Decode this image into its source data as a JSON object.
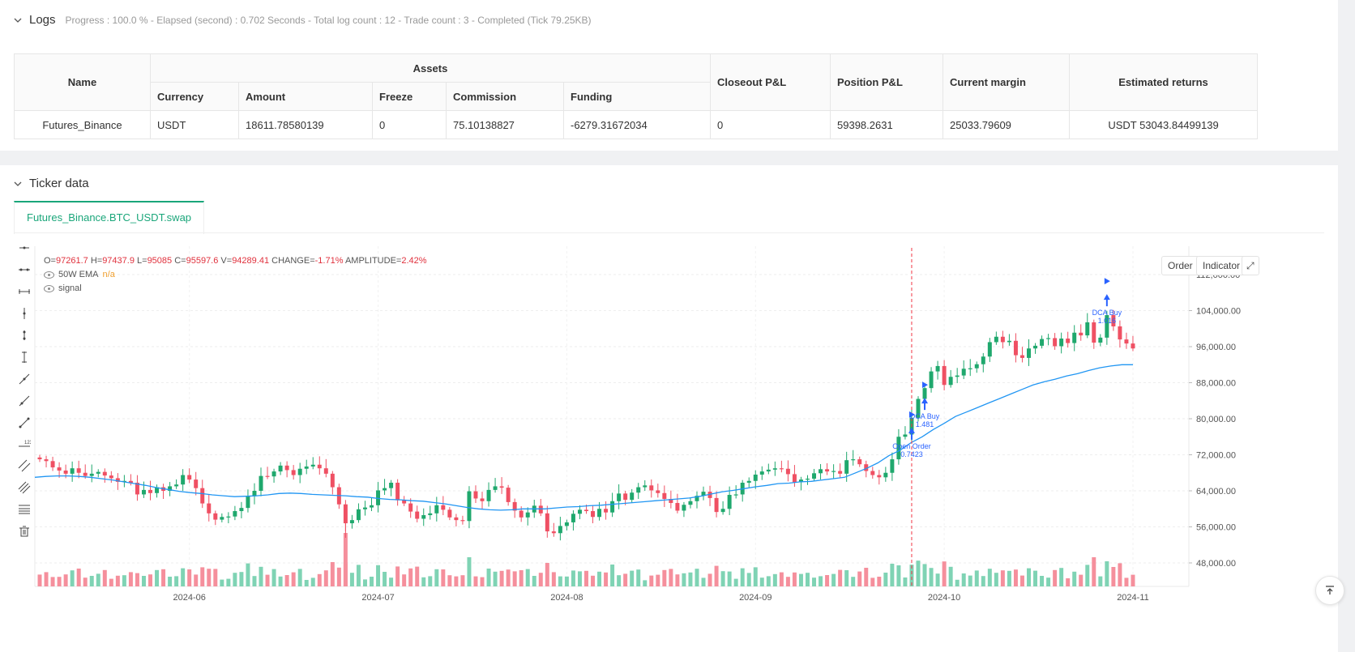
{
  "logs": {
    "title": "Logs",
    "summary": "Progress : 100.0 % - Elapsed (second) : 0.702  Seconds - Total log count : 12 - Trade count : 3 - Completed (Tick 79.25KB)",
    "table": {
      "headers": {
        "name": "Name",
        "assets": "Assets",
        "currency": "Currency",
        "amount": "Amount",
        "freeze": "Freeze",
        "commission": "Commission",
        "funding": "Funding",
        "closeout": "Closeout P&L",
        "position": "Position P&L",
        "margin": "Current margin",
        "returns": "Estimated returns"
      },
      "row": {
        "name": "Futures_Binance",
        "currency": "USDT",
        "amount": "18611.78580139",
        "freeze": "0",
        "commission": "75.10138827",
        "funding": "-6279.31672034",
        "closeout": "0",
        "position": "59398.2631",
        "margin": "25033.79609",
        "returns": "USDT 53043.84499139"
      }
    }
  },
  "ticker": {
    "title": "Ticker data",
    "tab": "Futures_Binance.BTC_USDT.swap",
    "buttons": {
      "order": "Order",
      "indicator": "Indicator"
    },
    "ohlc": {
      "o_label": "O=",
      "o": "97261.7",
      "h_label": "H=",
      "h": "97437.9",
      "l_label": "L=",
      "l": "95085",
      "c_label": "C=",
      "c": "95597.6",
      "v_label": "V=",
      "v": "94289.41",
      "change_label": "CHANGE=",
      "change": "-1.71%",
      "amp_label": "AMPLITUDE=",
      "amp": "2.42%"
    },
    "legend": {
      "ema_name": "50W EMA",
      "ema_value": "n/a",
      "signal": "signal"
    },
    "colors": {
      "up": "#26a69a",
      "up_fill": "#1fa86d",
      "down": "#ef5063",
      "ema": "#2196f3",
      "marker": "#2962ff",
      "crosshair": "#f23645"
    }
  },
  "chart_data": {
    "type": "candlestick",
    "y_ticks": [
      "112,000.00",
      "104,000.00",
      "96,000.00",
      "88,000.00",
      "80,000.00",
      "72,000.00",
      "64,000.00",
      "56,000.00",
      "48,000.00"
    ],
    "y_values": [
      112000,
      104000,
      96000,
      88000,
      80000,
      72000,
      64000,
      56000,
      48000
    ],
    "ylim": [
      43000,
      114500
    ],
    "x_ticks": [
      "2024-06",
      "2024-07",
      "2024-08",
      "2024-09",
      "2024-10",
      "2024-11"
    ],
    "x_tick_index": [
      23,
      52,
      81,
      110,
      139,
      168
    ],
    "closes": [
      71000,
      70600,
      69200,
      68500,
      67800,
      69000,
      68000,
      67300,
      67800,
      68200,
      67400,
      66800,
      66000,
      66200,
      65800,
      63200,
      64200,
      63500,
      64800,
      64000,
      65000,
      65400,
      67500,
      66500,
      64600,
      61200,
      59000,
      57600,
      58200,
      58300,
      59500,
      60200,
      62800,
      64000,
      67300,
      67200,
      68300,
      69600,
      68600,
      67500,
      68900,
      69400,
      69800,
      69000,
      67800,
      64800,
      61000,
      56800,
      57500,
      59900,
      60300,
      60800,
      64100,
      64600,
      65800,
      61900,
      61200,
      59400,
      57800,
      58600,
      59000,
      60800,
      59800,
      58100,
      57500,
      57300,
      63900,
      62300,
      61700,
      64200,
      65000,
      64700,
      61500,
      59600,
      58100,
      59200,
      60700,
      59000,
      55000,
      54600,
      56200,
      57000,
      58900,
      59800,
      59500,
      58200,
      60000,
      59200,
      61700,
      63400,
      62000,
      63600,
      64800,
      65200,
      64100,
      63500,
      62200,
      61300,
      59600,
      60900,
      61700,
      62900,
      63800,
      62400,
      59300,
      60000,
      63100,
      63200,
      65800,
      66200,
      67600,
      68300,
      68700,
      69000,
      68900,
      67700,
      65900,
      66500,
      66700,
      67900,
      68800,
      68300,
      68400,
      67800,
      70800,
      71000,
      69900,
      68400,
      67500,
      67000,
      68000,
      71000,
      76000,
      76500,
      80200,
      84400,
      86800,
      90500,
      91700,
      87500,
      89300,
      89600,
      91100,
      91200,
      92100,
      93800,
      97000,
      98200,
      97000,
      97300,
      94100,
      93500,
      95600,
      96200,
      97700,
      97900,
      96100,
      97800,
      96800,
      99100,
      98500,
      101400,
      96900,
      98000,
      103000,
      100500,
      97600,
      96700,
      95600
    ],
    "ema": [
      67000,
      67200,
      67300,
      67300,
      67200,
      67000,
      66700,
      66400,
      66000,
      65600,
      65200,
      64700,
      64300,
      63900,
      63600,
      63400,
      63100,
      62900,
      62700,
      62800,
      62900,
      63100,
      63400,
      63500,
      63400,
      63200,
      63100,
      63000,
      62900,
      62700,
      62600,
      62300,
      62100,
      62000,
      61800,
      61700,
      61400,
      61100,
      60700,
      60300,
      60000,
      59800,
      59700,
      59800,
      60000,
      60000,
      60000,
      60200,
      60400,
      60500,
      60700,
      60800,
      61000,
      61200,
      61400,
      61600,
      61800,
      62000,
      62200,
      62400,
      62800,
      63300,
      63800,
      64100,
      64500,
      64900,
      65200,
      65600,
      65700,
      66000,
      66100,
      66400,
      66700,
      67000,
      68000,
      69000,
      70200,
      71800,
      73000,
      74700,
      76000,
      77600,
      79000,
      80500,
      81500,
      82500,
      83500,
      84500,
      85500,
      86500,
      87500,
      88200,
      88800,
      89500,
      90000,
      90700,
      91300,
      91700,
      92000,
      92000
    ],
    "markers": [
      {
        "label": "Open Order",
        "value": "0.7423",
        "index": 134
      },
      {
        "label": "DCA Buy",
        "value": "1.481",
        "index": 136
      },
      {
        "label": "DCA Buy",
        "value": "1.016",
        "index": 164
      }
    ]
  }
}
